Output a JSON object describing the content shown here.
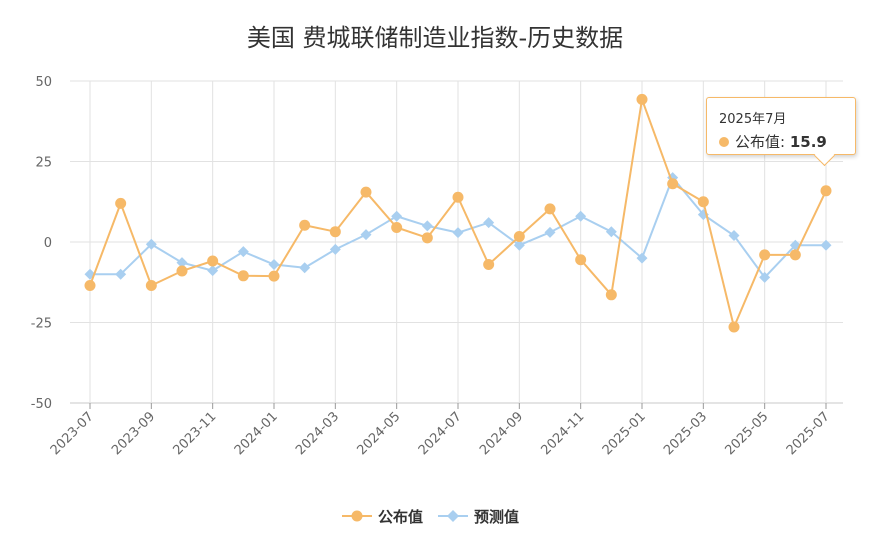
{
  "chart_data": {
    "type": "line",
    "title": "美国 费城联储制造业指数-历史数据",
    "xlabel": "",
    "ylabel": "",
    "ylim": [
      -50,
      50
    ],
    "yticks": [
      -50,
      -25,
      0,
      25,
      50
    ],
    "grid": true,
    "legend_position": "bottom",
    "x": [
      "2023-07",
      "2023-08",
      "2023-09",
      "2023-10",
      "2023-11",
      "2023-12",
      "2024-01",
      "2024-02",
      "2024-03",
      "2024-04",
      "2024-05",
      "2024-06",
      "2024-07",
      "2024-08",
      "2024-09",
      "2024-10",
      "2024-11",
      "2024-12",
      "2025-01",
      "2025-02",
      "2025-03",
      "2025-04",
      "2025-05",
      "2025-06",
      "2025-07"
    ],
    "x_tick_labels": [
      "2023-07",
      "2023-09",
      "2023-11",
      "2024-01",
      "2024-03",
      "2024-05",
      "2024-07",
      "2024-09",
      "2024-11",
      "2025-01",
      "2025-03",
      "2025-05",
      "2025-07"
    ],
    "series": [
      {
        "name": "公布值",
        "color": "#f6b968",
        "marker": "circle",
        "values": [
          -13.5,
          12.0,
          -13.5,
          -9.0,
          -5.9,
          -10.5,
          -10.6,
          5.2,
          3.2,
          15.5,
          4.5,
          1.3,
          13.9,
          -7.0,
          1.7,
          10.3,
          -5.5,
          -16.4,
          44.3,
          18.1,
          12.5,
          -26.4,
          -4.0,
          -4.0,
          15.9
        ]
      },
      {
        "name": "预测值",
        "color": "#a9cff0",
        "marker": "diamond",
        "values": [
          -10.0,
          -10.0,
          -0.7,
          -6.4,
          -8.9,
          -3.0,
          -7.0,
          -8.0,
          -2.3,
          2.3,
          8.0,
          5.0,
          2.9,
          6.0,
          -1.0,
          3.0,
          8.0,
          3.2,
          -5.0,
          20.0,
          8.5,
          2.0,
          -11.0,
          -1.0,
          -1.0
        ]
      }
    ],
    "tooltip": {
      "title": "2025年7月",
      "series_label": "公布值",
      "value": "15.9"
    }
  }
}
